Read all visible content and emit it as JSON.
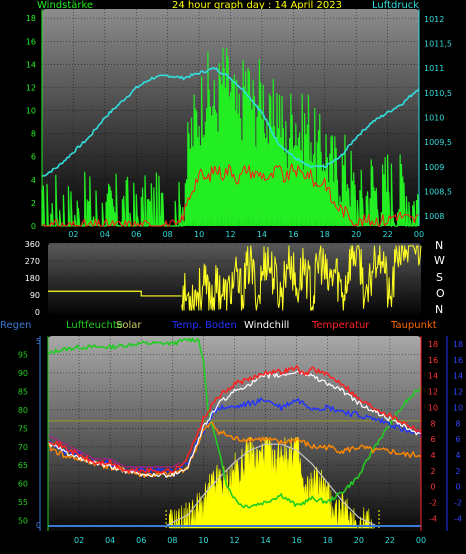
{
  "colors": {
    "wind_speed": "#22ee22",
    "wind_gust": "#ff1a1a",
    "pressure": "#33dddd",
    "wind_dir": "#ffff22",
    "solar": "#ffff00",
    "humidity": "#22cc22",
    "temp_ground": "#2233ff",
    "windchill": "#ffffff",
    "temperature": "#ff2222",
    "dewpoint": "#ff8800",
    "rain": "#3a7ad6",
    "olive": "#9a9a20"
  },
  "chart_data": [
    {
      "type": "line",
      "title": "24 hour graph day : 14 April 2023",
      "left_axis_label": "Windstärke",
      "right_axis_label": "Luftdruck",
      "ylim_left": [
        0,
        18.8
      ],
      "ylim_right": [
        1007.8,
        1012.2
      ],
      "yticks_left": [
        "0",
        "2",
        "4",
        "6",
        "8",
        "10",
        "12",
        "14",
        "16",
        "18"
      ],
      "yticks_right": [
        "1008",
        "1008,5",
        "1009",
        "1009,5",
        "1010",
        "1010,5",
        "1011",
        "1011,5",
        "1012"
      ],
      "xticks": [
        "02",
        "04",
        "06",
        "08",
        "10",
        "12",
        "14",
        "16",
        "18",
        "20",
        "22",
        "00"
      ],
      "grid": true,
      "series": [
        {
          "name": "Windstärke",
          "x": [
            0,
            1,
            2,
            3,
            4,
            5,
            6,
            7,
            8,
            8.7,
            9,
            9.5,
            10,
            10.5,
            11,
            11.5,
            12,
            12.5,
            13,
            13.5,
            14,
            14.5,
            15,
            15.5,
            16,
            16.5,
            17,
            17.5,
            18,
            18.5,
            19,
            19.5,
            20,
            20.5,
            21,
            21.5,
            22,
            22.5,
            23,
            23.5,
            24
          ],
          "values": [
            0.5,
            1.5,
            0.5,
            1.5,
            0.5,
            1.5,
            0.5,
            1.5,
            0.5,
            0.5,
            3,
            8,
            10,
            12,
            10,
            13,
            12,
            9,
            13,
            10,
            12,
            8,
            11,
            7,
            10,
            8,
            9,
            6,
            7,
            5,
            5,
            5,
            2,
            2,
            4,
            2,
            4,
            2,
            4,
            2,
            2
          ]
        },
        {
          "name": "Böen",
          "x": [
            0,
            2,
            4,
            6,
            8,
            8.7,
            9,
            9.5,
            10,
            10.5,
            11,
            11.5,
            12,
            12.5,
            13,
            13.5,
            14,
            14.5,
            15,
            15.5,
            16,
            16.5,
            17,
            17.5,
            18,
            18.5,
            19,
            19.5,
            20,
            21,
            22,
            22.5,
            23,
            23.5,
            24
          ],
          "values": [
            0,
            0,
            0,
            0,
            0,
            0,
            1,
            3,
            4.5,
            4,
            5,
            4.5,
            5,
            4,
            5,
            4.5,
            4.5,
            4,
            5,
            4,
            5,
            4.5,
            4.5,
            3.5,
            4,
            2,
            1.5,
            1,
            0.3,
            0.5,
            0.5,
            1,
            0.8,
            0.5,
            0.7
          ]
        },
        {
          "name": "Luftdruck",
          "x": [
            0,
            1,
            2,
            3,
            4,
            5,
            6,
            7,
            8,
            9,
            10,
            11,
            12,
            13,
            14,
            14.5,
            15,
            16,
            17,
            18,
            19,
            20,
            21,
            22,
            23,
            24
          ],
          "values": [
            1008.8,
            1009.0,
            1009.3,
            1009.6,
            1010.0,
            1010.3,
            1010.6,
            1010.8,
            1010.85,
            1010.8,
            1010.9,
            1011.0,
            1010.8,
            1010.5,
            1010.1,
            1009.8,
            1009.5,
            1009.2,
            1009.0,
            1009.0,
            1009.2,
            1009.6,
            1009.9,
            1010.1,
            1010.3,
            1010.6
          ]
        }
      ]
    },
    {
      "type": "line",
      "ylim": [
        0,
        360
      ],
      "yticks": [
        "0",
        "90",
        "180",
        "270",
        "360"
      ],
      "compass_labels": [
        "N",
        "W",
        "S",
        "O",
        "N"
      ],
      "series": [
        {
          "name": "wind_direction",
          "x": [
            0,
            2,
            4,
            5,
            6,
            8,
            8.6,
            9,
            9.5,
            10,
            10.5,
            11,
            11.5,
            12,
            12.5,
            13,
            13.5,
            14,
            14.5,
            15,
            15.5,
            16,
            16.5,
            17,
            17.5,
            18,
            18.5,
            19,
            19.5,
            20,
            20.5,
            21,
            21.5,
            22,
            22.5,
            23,
            23.5,
            24
          ],
          "values": [
            110,
            110,
            110,
            110,
            85,
            85,
            85,
            80,
            100,
            130,
            90,
            140,
            70,
            180,
            100,
            280,
            60,
            300,
            200,
            80,
            320,
            110,
            260,
            60,
            300,
            140,
            220,
            90,
            300,
            330,
            20,
            300,
            340,
            30,
            330,
            350,
            340,
            350
          ]
        }
      ]
    },
    {
      "type": "line",
      "legend": [
        "Regen",
        "Luftfeuchte",
        "Solar",
        "Temp. Boden",
        "Windchill",
        "Temperatur",
        "Taupunkt"
      ],
      "ylim_humidity": [
        48,
        100
      ],
      "yticks_humidity": [
        "50",
        "55",
        "60",
        "65",
        "70",
        "75",
        "80",
        "85",
        "90",
        "95"
      ],
      "ylim_temp": [
        -5.2,
        19
      ],
      "yticks_temp": [
        "-4",
        "-2",
        "0",
        "2",
        "4",
        "6",
        "8",
        "10",
        "12",
        "14",
        "16",
        "18"
      ],
      "rain_axis_tick_top": "5",
      "rain_axis_tick_bottom": "0",
      "xticks": [
        "02",
        "04",
        "06",
        "08",
        "10",
        "12",
        "14",
        "16",
        "18",
        "20",
        "22",
        "00"
      ],
      "grid": true,
      "series": [
        {
          "name": "Luftfeuchte",
          "x": [
            0,
            0.5,
            2,
            4,
            6,
            8,
            9,
            9.7,
            10,
            10.3,
            10.8,
            11.5,
            12,
            12.5,
            13,
            14,
            15,
            16,
            17,
            18,
            19,
            20,
            21,
            22,
            23,
            24
          ],
          "values": [
            95,
            96,
            97,
            97,
            98,
            98,
            99,
            99,
            93,
            80,
            72,
            60,
            56,
            54,
            54,
            55,
            57,
            54,
            56,
            55,
            58,
            62,
            70,
            76,
            82,
            86
          ]
        },
        {
          "name": "Temperatur",
          "x": [
            0,
            1,
            2,
            3,
            4,
            5,
            6,
            7,
            8,
            8.5,
            9,
            9.5,
            10,
            10.5,
            11,
            11.5,
            12,
            13,
            14,
            15,
            16,
            16.5,
            17,
            18,
            19,
            20,
            21,
            22,
            23,
            24
          ],
          "values": [
            6,
            5,
            4,
            3,
            3,
            2,
            2,
            2,
            2,
            2.5,
            4,
            6,
            8.5,
            10,
            11.5,
            12,
            13,
            13.5,
            14.5,
            14.5,
            15,
            14,
            15,
            14,
            13,
            11,
            10,
            9,
            8,
            7
          ]
        },
        {
          "name": "Taupunkt",
          "x": [
            0,
            1,
            2,
            3,
            4,
            5,
            6,
            7,
            8,
            9,
            10,
            10.5,
            11,
            12,
            13,
            14,
            15,
            16,
            17,
            18,
            19,
            20,
            21,
            22,
            23,
            24
          ],
          "values": [
            5,
            4,
            3.5,
            3,
            2.5,
            2,
            1.5,
            1.5,
            1.5,
            2.5,
            7,
            8,
            7,
            6,
            6,
            6,
            5.5,
            6,
            5,
            5,
            4.5,
            5,
            4.5,
            4.5,
            4,
            4
          ]
        },
        {
          "name": "Temp. Boden",
          "x": [
            0,
            1,
            2,
            3,
            4,
            5,
            6,
            7,
            8,
            9,
            10,
            10.5,
            11,
            12,
            13,
            14,
            15,
            16,
            17,
            18,
            19,
            20,
            21,
            22,
            23,
            24
          ],
          "values": [
            5.5,
            4.5,
            4,
            3,
            3,
            2,
            2,
            2,
            2,
            3,
            7,
            9,
            10,
            10,
            10.5,
            11,
            10,
            11,
            10,
            10,
            9.5,
            9,
            8.5,
            8,
            7,
            6.5
          ]
        },
        {
          "name": "Windchill",
          "x": [
            0,
            1,
            2,
            3,
            4,
            5,
            6,
            7,
            8,
            9,
            10,
            10.5,
            11,
            12,
            13,
            14,
            15,
            16,
            17,
            18,
            19,
            20,
            21,
            22,
            23,
            24
          ],
          "values": [
            5.5,
            4.5,
            3.5,
            3,
            2.5,
            2,
            1.5,
            1.5,
            1.5,
            2.5,
            7.5,
            9,
            10.5,
            12,
            13,
            14,
            14,
            14.5,
            14,
            13,
            12,
            10.5,
            9.5,
            8.5,
            7.5,
            6.5
          ]
        },
        {
          "name": "Solar_clear_sky",
          "x": [
            7.5,
            9,
            10,
            11,
            12,
            13,
            14,
            15,
            16,
            17,
            18,
            19,
            20,
            21.3
          ],
          "values": [
            0.02,
            0.15,
            0.38,
            0.58,
            0.76,
            0.9,
            0.97,
            0.97,
            0.9,
            0.74,
            0.52,
            0.3,
            0.12,
            0.01
          ]
        },
        {
          "name": "Solar",
          "x": [
            7.8,
            8.5,
            9,
            9.5,
            10,
            10.5,
            11,
            11.5,
            12,
            12.5,
            13,
            13.5,
            14,
            14.5,
            15,
            15.5,
            16,
            16.5,
            17,
            17.5,
            18,
            18.5,
            19,
            19.5,
            20,
            20.5,
            21
          ],
          "values": [
            0.01,
            0.05,
            0.1,
            0.2,
            0.25,
            0.45,
            0.55,
            0.5,
            0.65,
            0.7,
            0.9,
            0.75,
            0.95,
            0.7,
            0.92,
            0.8,
            1.0,
            0.35,
            0.5,
            0.55,
            0.35,
            0.2,
            0.18,
            0.12,
            0.05,
            0.02,
            0.0
          ]
        },
        {
          "name": "Regen",
          "x": [
            0,
            24
          ],
          "values": [
            0,
            0
          ]
        }
      ]
    }
  ]
}
